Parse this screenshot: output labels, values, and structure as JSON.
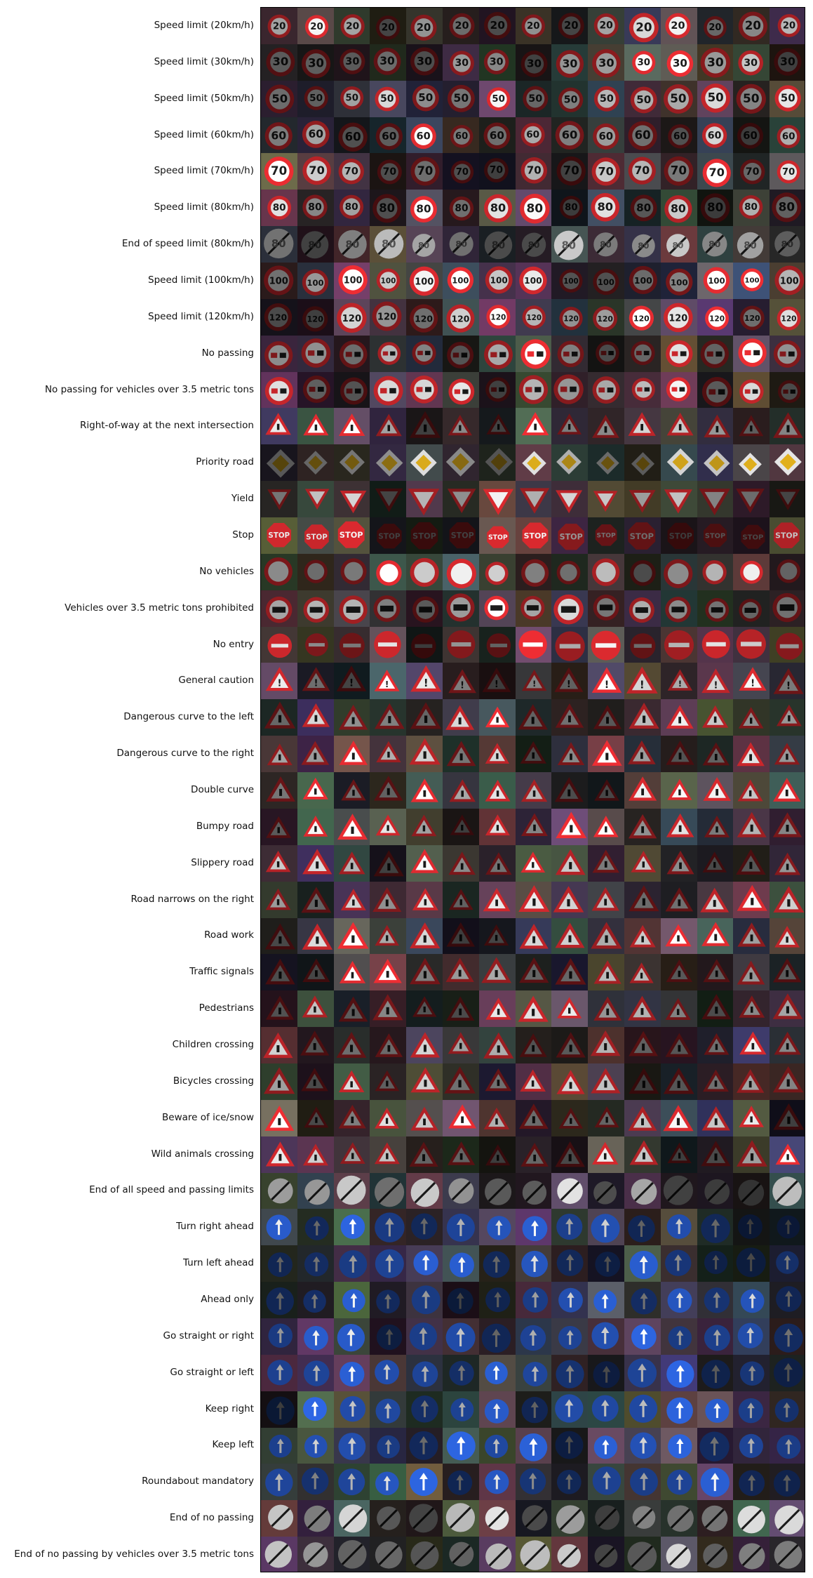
{
  "figure": {
    "rows": [
      {
        "label": "Speed limit (20km/h)",
        "kind": "speed",
        "text": "20"
      },
      {
        "label": "Speed limit (30km/h)",
        "kind": "speed",
        "text": "30"
      },
      {
        "label": "Speed limit (50km/h)",
        "kind": "speed",
        "text": "50"
      },
      {
        "label": "Speed limit (60km/h)",
        "kind": "speed",
        "text": "60"
      },
      {
        "label": "Speed limit (70km/h)",
        "kind": "speed",
        "text": "70"
      },
      {
        "label": "Speed limit (80km/h)",
        "kind": "speed",
        "text": "80"
      },
      {
        "label": "End of speed limit (80km/h)",
        "kind": "end",
        "text": "80"
      },
      {
        "label": "Speed limit (100km/h)",
        "kind": "speed",
        "text": "100"
      },
      {
        "label": "Speed limit (120km/h)",
        "kind": "speed",
        "text": "120"
      },
      {
        "label": "No passing",
        "kind": "nopass",
        "text": ""
      },
      {
        "label": "No passing for vehicles over 3.5 metric tons",
        "kind": "nopass",
        "text": ""
      },
      {
        "label": "Right-of-way at the next intersection",
        "kind": "triangle",
        "text": ""
      },
      {
        "label": "Priority road",
        "kind": "diamond",
        "text": ""
      },
      {
        "label": "Yield",
        "kind": "yield",
        "text": ""
      },
      {
        "label": "Stop",
        "kind": "stop",
        "text": "STOP"
      },
      {
        "label": "No vehicles",
        "kind": "ring",
        "text": ""
      },
      {
        "label": "Vehicles over 3.5 metric tons prohibited",
        "kind": "truck",
        "text": ""
      },
      {
        "label": "No entry",
        "kind": "noentry",
        "text": ""
      },
      {
        "label": "General caution",
        "kind": "triangle",
        "text": "!"
      },
      {
        "label": "Dangerous curve to the left",
        "kind": "triangle",
        "text": ""
      },
      {
        "label": "Dangerous curve to the right",
        "kind": "triangle",
        "text": ""
      },
      {
        "label": "Double curve",
        "kind": "triangle",
        "text": ""
      },
      {
        "label": "Bumpy road",
        "kind": "triangle",
        "text": ""
      },
      {
        "label": "Slippery road",
        "kind": "triangle",
        "text": ""
      },
      {
        "label": "Road narrows on the right",
        "kind": "triangle",
        "text": ""
      },
      {
        "label": "Road work",
        "kind": "triangle",
        "text": ""
      },
      {
        "label": "Traffic signals",
        "kind": "triangle",
        "text": ""
      },
      {
        "label": "Pedestrians",
        "kind": "triangle",
        "text": ""
      },
      {
        "label": "Children crossing",
        "kind": "triangle",
        "text": ""
      },
      {
        "label": "Bicycles crossing",
        "kind": "triangle",
        "text": ""
      },
      {
        "label": "Beware of ice/snow",
        "kind": "triangle",
        "text": ""
      },
      {
        "label": "Wild animals crossing",
        "kind": "triangle",
        "text": ""
      },
      {
        "label": "End of all speed and passing limits",
        "kind": "end",
        "text": ""
      },
      {
        "label": "Turn right ahead",
        "kind": "blue",
        "text": ""
      },
      {
        "label": "Turn left ahead",
        "kind": "blue",
        "text": ""
      },
      {
        "label": "Ahead only",
        "kind": "blue",
        "text": ""
      },
      {
        "label": "Go straight or right",
        "kind": "blue",
        "text": ""
      },
      {
        "label": "Go straight or left",
        "kind": "blue",
        "text": ""
      },
      {
        "label": "Keep right",
        "kind": "blue",
        "text": ""
      },
      {
        "label": "Keep left",
        "kind": "blue",
        "text": ""
      },
      {
        "label": "Roundabout mandatory",
        "kind": "blue",
        "text": ""
      },
      {
        "label": "End of no passing",
        "kind": "end",
        "text": ""
      },
      {
        "label": "End of no passing by vehicles over 3.5 metric tons",
        "kind": "end",
        "text": ""
      }
    ],
    "columns": 15
  }
}
